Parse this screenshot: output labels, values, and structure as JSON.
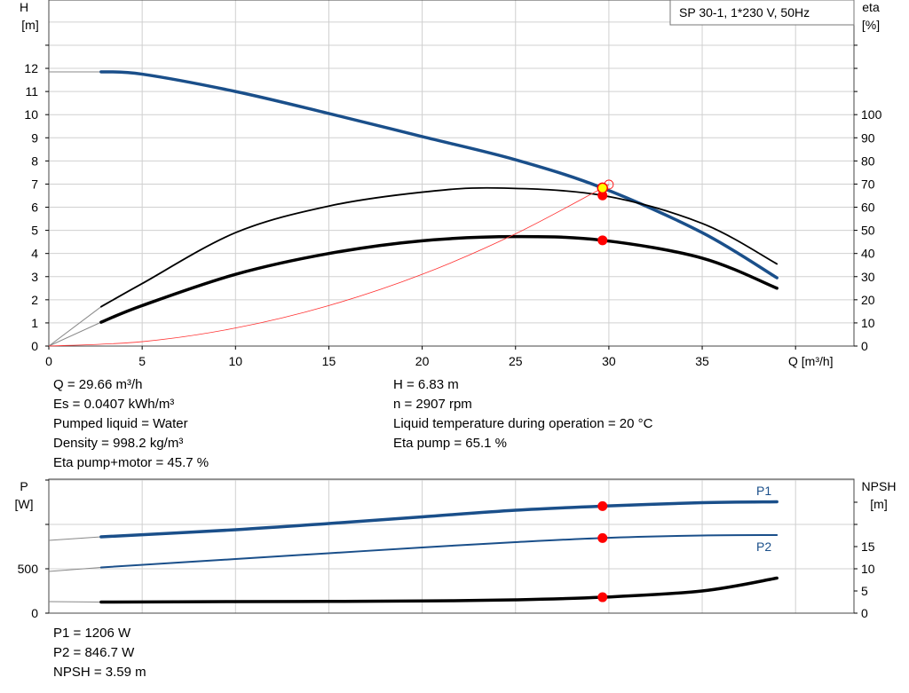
{
  "chart_data": [
    {
      "type": "line",
      "title": "SP 30-1, 1*230 V, 50Hz",
      "xlabel": "Q [m³/h]",
      "ylabel": "H\n[m]",
      "ylabel_main": "H",
      "ylabel_unit": "[m]",
      "y2label_main": "eta",
      "y2label_unit": "[%]",
      "xlim": [
        0,
        42
      ],
      "ylim": [
        0,
        14
      ],
      "y2lim": [
        0,
        140
      ],
      "xticks": [
        0,
        5,
        10,
        15,
        20,
        25,
        30,
        35
      ],
      "yticks": [
        0,
        1,
        2,
        3,
        4,
        5,
        6,
        7,
        8,
        9,
        10,
        11,
        12
      ],
      "y2ticks": [
        0,
        10,
        20,
        30,
        40,
        50,
        60,
        70,
        80,
        90,
        100
      ],
      "grid": true,
      "legend": "top-right",
      "series": [
        {
          "key": "H",
          "axis": "y",
          "color": "#1a4f8a",
          "width": 3.5,
          "x": [
            0,
            2.8,
            5,
            10,
            15,
            20,
            25,
            29.66,
            35,
            39
          ],
          "values": [
            11.85,
            11.85,
            11.75,
            11.0,
            10.05,
            9.05,
            8.05,
            6.83,
            4.9,
            2.95
          ]
        },
        {
          "key": "eta_pump",
          "axis": "y2",
          "color": "#000000",
          "width": 1.8,
          "x": [
            0,
            2.8,
            5,
            10,
            15,
            20,
            24,
            29.66,
            35,
            39
          ],
          "values": [
            0,
            17,
            27,
            49,
            60.5,
            66.5,
            68.3,
            65.1,
            53,
            35.5
          ]
        },
        {
          "key": "eta_total",
          "axis": "y2",
          "color": "#000000",
          "width": 3.5,
          "x": [
            0,
            2.8,
            5,
            10,
            15,
            20,
            25,
            29.66,
            35,
            39
          ],
          "values": [
            0,
            10.3,
            17.5,
            31,
            40,
            45.5,
            47.3,
            45.7,
            38,
            25
          ]
        },
        {
          "key": "system",
          "axis": "y",
          "color": "#ff3030",
          "width": 0.8,
          "x": [
            0,
            5,
            10,
            15,
            20,
            25,
            30
          ],
          "values": [
            0,
            0.19,
            0.78,
            1.75,
            3.1,
            4.85,
            6.98
          ]
        }
      ],
      "operating_point": {
        "Q": 29.66,
        "H": 6.83,
        "eta_pump": 65.1,
        "eta_total": 45.7
      }
    },
    {
      "type": "line",
      "ylabel_main": "P",
      "ylabel_unit": "[W]",
      "y2label_main": "NPSH",
      "y2label_unit": "[m]",
      "xlim": [
        0,
        42
      ],
      "ylim": [
        0,
        1500
      ],
      "y2lim": [
        0,
        30
      ],
      "yticks": [
        0,
        500
      ],
      "y2ticks": [
        0,
        5,
        10,
        15
      ],
      "grid": true,
      "series": [
        {
          "key": "P1",
          "name": "P1",
          "axis": "y",
          "color": "#1a4f8a",
          "width": 3.5,
          "x": [
            0,
            2.8,
            10,
            15,
            20,
            25,
            29.66,
            35,
            39
          ],
          "values": [
            820,
            860,
            940,
            1010,
            1085,
            1160,
            1206,
            1245,
            1255
          ]
        },
        {
          "key": "P2",
          "name": "P2",
          "axis": "y",
          "color": "#1a4f8a",
          "width": 2,
          "x": [
            0,
            2.8,
            10,
            15,
            20,
            25,
            29.66,
            35,
            39
          ],
          "values": [
            470,
            515,
            610,
            675,
            740,
            800,
            846.7,
            875,
            880
          ]
        },
        {
          "key": "NPSH",
          "axis": "y2",
          "color": "#000000",
          "width": 3.5,
          "x": [
            0,
            2.8,
            10,
            15,
            20,
            25,
            29.66,
            35,
            39
          ],
          "values": [
            2.6,
            2.5,
            2.6,
            2.65,
            2.75,
            3.0,
            3.59,
            5.0,
            7.9
          ]
        }
      ],
      "operating_point": {
        "Q": 29.66,
        "P1": 1206,
        "P2": 846.7,
        "NPSH": 3.59
      }
    }
  ],
  "results": {
    "left": [
      "Q = 29.66 m³/h",
      "Es = 0.0407 kWh/m³",
      "Pumped liquid = Water",
      "Density = 998.2 kg/m³",
      "Eta pump+motor = 45.7 %"
    ],
    "right": [
      "H = 6.83 m",
      "n = 2907 rpm",
      "Liquid temperature during operation = 20 °C",
      "Eta pump = 65.1 %"
    ],
    "power": [
      "P1 = 1206 W",
      "P2 = 846.7 W",
      "NPSH = 3.59 m"
    ]
  },
  "colors": {
    "grid": "#d0d0d0",
    "accent": "#1a4f8a",
    "marker": "#ff0000",
    "highlight": "#ffff00"
  }
}
